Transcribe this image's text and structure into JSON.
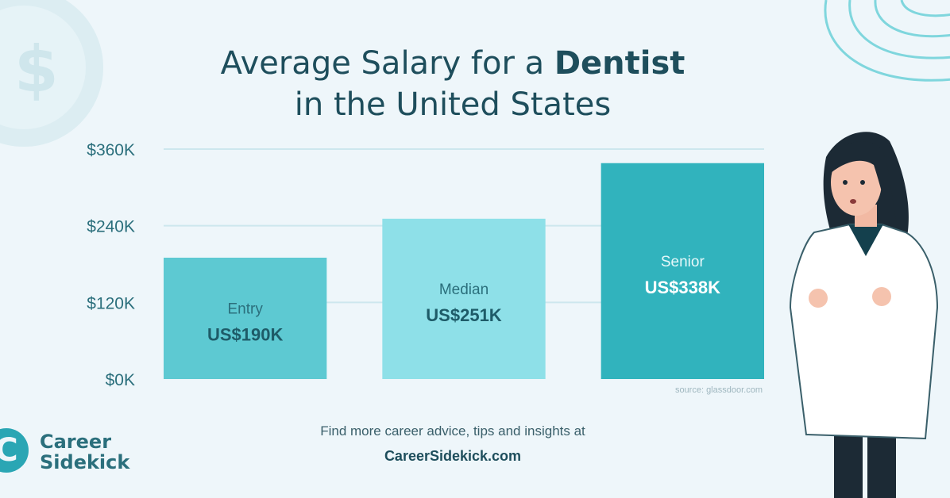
{
  "title": {
    "line1_prefix": "Average Salary for a",
    "line1_highlight": "Dentist",
    "line2": "in the United States"
  },
  "chart_data": {
    "type": "bar",
    "categories": [
      "Entry",
      "Median",
      "Senior"
    ],
    "values": [
      190,
      251,
      338
    ],
    "value_labels": [
      "US$190K",
      "US$251K",
      "US$338K"
    ],
    "bar_colors": [
      "#5dc9d2",
      "#8ee0e8",
      "#31b3bd"
    ],
    "yticks": [
      "$0K",
      "$120K",
      "$240K",
      "$360K"
    ],
    "ytick_values": [
      0,
      120,
      240,
      360
    ],
    "ylim": [
      0,
      360
    ],
    "grid": true,
    "xlabel": "",
    "ylabel": ""
  },
  "source": "source: glassdoor.com",
  "footer": {
    "text": "Find more career advice, tips and insights at",
    "url": "CareerSidekick.com"
  },
  "logo": {
    "line1": "Career",
    "line2": "Sidekick",
    "mark": "C"
  },
  "colors": {
    "background": "#eef6fa",
    "accent": "#2aa6b4",
    "title": "#1e4e5c"
  }
}
